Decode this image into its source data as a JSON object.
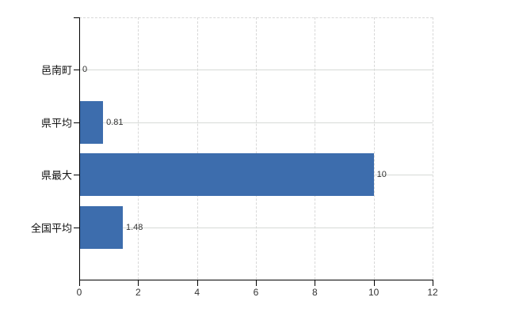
{
  "chart_data": {
    "type": "bar",
    "orientation": "horizontal",
    "title": "",
    "xlabel": "",
    "ylabel": "",
    "categories": [
      "邑南町",
      "県平均",
      "県最大",
      "全国平均"
    ],
    "values": [
      0,
      0.81,
      10,
      1.48
    ],
    "value_labels": [
      "0",
      "0.81",
      "10",
      "1.48"
    ],
    "xlim": [
      0,
      12
    ],
    "xticks": [
      0,
      2,
      4,
      6,
      8,
      10,
      12
    ],
    "xtick_labels": [
      "0",
      "2",
      "4",
      "6",
      "8",
      "10",
      "12"
    ],
    "grid": true,
    "legend": false,
    "colors": {
      "bar": "#3d6dad",
      "axis": "#000000",
      "gridline_dashed": "#d8d8d8",
      "gridline_solid": "#d6dad6",
      "value_label": "#333333",
      "tick_label": "#333333",
      "category_label": "#111111",
      "background": "#ffffff"
    }
  }
}
